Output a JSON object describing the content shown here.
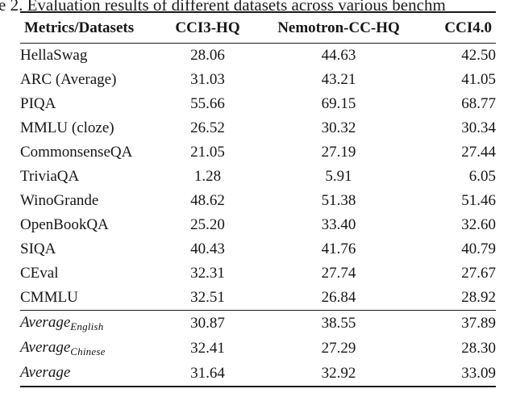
{
  "caption": {
    "visible_text": "e 2. Evaluation results of different datasets across various benchm"
  },
  "table": {
    "columns": [
      "Metrics/Datasets",
      "CCI3-HQ",
      "Nemotron-CC-HQ",
      "CCI4.0"
    ],
    "rows": [
      {
        "metric": "HellaSwag",
        "values": [
          "28.06",
          "44.63",
          "42.50"
        ]
      },
      {
        "metric": "ARC (Average)",
        "values": [
          "31.03",
          "43.21",
          "41.05"
        ]
      },
      {
        "metric": "PIQA",
        "values": [
          "55.66",
          "69.15",
          "68.77"
        ]
      },
      {
        "metric": "MMLU (cloze)",
        "values": [
          "26.52",
          "30.32",
          "30.34"
        ]
      },
      {
        "metric": "CommonsenseQA",
        "values": [
          "21.05",
          "27.19",
          "27.44"
        ]
      },
      {
        "metric": "TriviaQA",
        "values": [
          "1.28",
          "5.91",
          "6.05"
        ]
      },
      {
        "metric": "WinoGrande",
        "values": [
          "48.62",
          "51.38",
          "51.46"
        ]
      },
      {
        "metric": "OpenBookQA",
        "values": [
          "25.20",
          "33.40",
          "32.60"
        ]
      },
      {
        "metric": "SIQA",
        "values": [
          "40.43",
          "41.76",
          "40.79"
        ]
      },
      {
        "metric": "CEval",
        "values": [
          "32.31",
          "27.74",
          "27.67"
        ]
      },
      {
        "metric": "CMMLU",
        "values": [
          "32.51",
          "26.84",
          "28.92"
        ]
      }
    ],
    "average_rows": [
      {
        "label": "Average",
        "subscript": "English",
        "values": [
          "30.87",
          "38.55",
          "37.89"
        ]
      },
      {
        "label": "Average",
        "subscript": "Chinese",
        "values": [
          "32.41",
          "27.29",
          "28.30"
        ]
      },
      {
        "label": "Average",
        "subscript": "",
        "values": [
          "31.64",
          "32.92",
          "33.09"
        ]
      }
    ]
  },
  "colors": {
    "background": "#ffffff",
    "text": "#161616",
    "rule": "#1a1a1a"
  }
}
